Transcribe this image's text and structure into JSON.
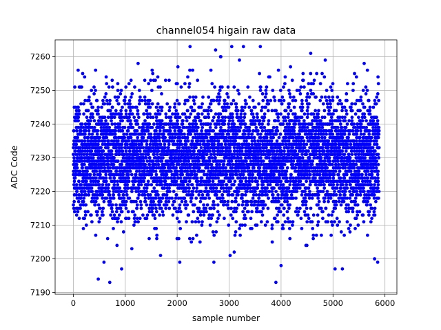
{
  "chart_data": {
    "type": "scatter",
    "title": "channel054 higain raw data",
    "xlabel": "sample number",
    "ylabel": "ADC Code",
    "xlim": [
      -350,
      6230
    ],
    "ylim": [
      7189.5,
      7265
    ],
    "xticks": [
      0,
      1000,
      2000,
      3000,
      4000,
      5000,
      6000
    ],
    "yticks": [
      7190,
      7200,
      7210,
      7220,
      7230,
      7240,
      7250,
      7260
    ],
    "grid": true,
    "color": "#0000ff",
    "n_points": 5888,
    "distribution": {
      "center": 7230,
      "typical_range": [
        7212,
        7248
      ],
      "min": 7193,
      "max": 7263
    },
    "outliers": [
      {
        "x": 480,
        "y": 7194
      },
      {
        "x": 590,
        "y": 7199
      },
      {
        "x": 930,
        "y": 7197
      },
      {
        "x": 1680,
        "y": 7201
      },
      {
        "x": 2050,
        "y": 7199
      },
      {
        "x": 2650,
        "y": 7256
      },
      {
        "x": 2740,
        "y": 7262
      },
      {
        "x": 2840,
        "y": 7260
      },
      {
        "x": 3050,
        "y": 7263
      },
      {
        "x": 3020,
        "y": 7201
      },
      {
        "x": 3600,
        "y": 7263
      },
      {
        "x": 3900,
        "y": 7193
      },
      {
        "x": 4000,
        "y": 7198
      },
      {
        "x": 4570,
        "y": 7261
      },
      {
        "x": 4850,
        "y": 7259
      },
      {
        "x": 5040,
        "y": 7197
      },
      {
        "x": 5180,
        "y": 7197
      },
      {
        "x": 5600,
        "y": 7258
      },
      {
        "x": 5800,
        "y": 7200
      },
      {
        "x": 5860,
        "y": 7199
      }
    ]
  }
}
